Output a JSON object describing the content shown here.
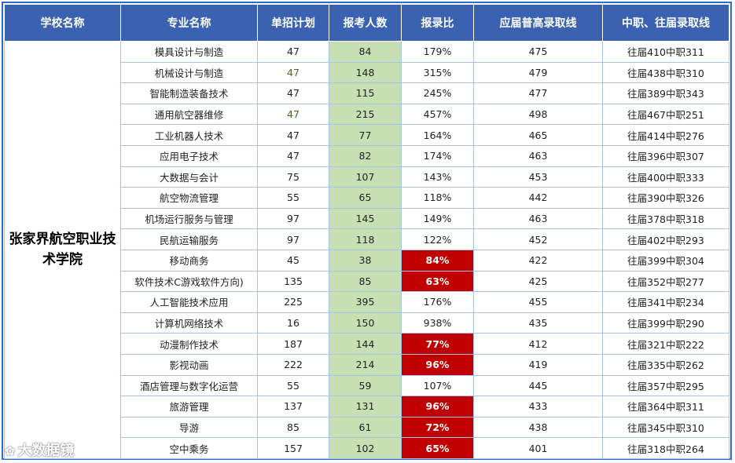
{
  "headers": [
    "学校名称",
    "专业名称",
    "单招计划",
    "报考人数",
    "报录比",
    "应届普高录取线",
    "中职、往届录取线"
  ],
  "school": "张家界航空职业技术学院",
  "rows": [
    {
      "major": "模具设计与制造",
      "plan": "47",
      "applicants": "84",
      "ratio": "179%",
      "line_hs": "475",
      "line_other": "往届410中职311",
      "low": false
    },
    {
      "major": "机械设计与制造",
      "plan": "47",
      "applicants": "148",
      "ratio": "315%",
      "line_hs": "479",
      "line_other": "往届438中职310",
      "low": false
    },
    {
      "major": "智能制造装备技术",
      "plan": "47",
      "applicants": "115",
      "ratio": "245%",
      "line_hs": "477",
      "line_other": "往届389中职343",
      "low": false
    },
    {
      "major": "通用航空器维修",
      "plan": "47",
      "applicants": "215",
      "ratio": "457%",
      "line_hs": "498",
      "line_other": "往届467中职251",
      "low": false
    },
    {
      "major": "工业机器人技术",
      "plan": "47",
      "applicants": "77",
      "ratio": "164%",
      "line_hs": "465",
      "line_other": "往届414中职276",
      "low": false
    },
    {
      "major": "应用电子技术",
      "plan": "47",
      "applicants": "82",
      "ratio": "174%",
      "line_hs": "463",
      "line_other": "往届396中职307",
      "low": false
    },
    {
      "major": "大数据与会计",
      "plan": "75",
      "applicants": "107",
      "ratio": "143%",
      "line_hs": "453",
      "line_other": "往届400中职333",
      "low": false
    },
    {
      "major": "航空物流管理",
      "plan": "55",
      "applicants": "65",
      "ratio": "118%",
      "line_hs": "442",
      "line_other": "往届390中职326",
      "low": false
    },
    {
      "major": "机场运行服务与管理",
      "plan": "97",
      "applicants": "145",
      "ratio": "149%",
      "line_hs": "463",
      "line_other": "往届378中职318",
      "low": false
    },
    {
      "major": "民航运输服务",
      "plan": "97",
      "applicants": "118",
      "ratio": "122%",
      "line_hs": "452",
      "line_other": "往届402中职293",
      "low": false
    },
    {
      "major": "移动商务",
      "plan": "45",
      "applicants": "38",
      "ratio": "84%",
      "line_hs": "422",
      "line_other": "往届399中职304",
      "low": true
    },
    {
      "major": "软件技术C游戏软件方向)",
      "plan": "135",
      "applicants": "85",
      "ratio": "63%",
      "line_hs": "425",
      "line_other": "往届352中职277",
      "low": true
    },
    {
      "major": "人工智能技术应用",
      "plan": "225",
      "applicants": "395",
      "ratio": "176%",
      "line_hs": "455",
      "line_other": "往届341中职234",
      "low": false
    },
    {
      "major": "计算机网络技术",
      "plan": "16",
      "applicants": "150",
      "ratio": "938%",
      "line_hs": "435",
      "line_other": "往届399中职290",
      "low": false
    },
    {
      "major": "动漫制作技术",
      "plan": "187",
      "applicants": "144",
      "ratio": "77%",
      "line_hs": "412",
      "line_other": "往届321中职222",
      "low": true
    },
    {
      "major": "影视动画",
      "plan": "222",
      "applicants": "214",
      "ratio": "96%",
      "line_hs": "419",
      "line_other": "往届335中职262",
      "low": true
    },
    {
      "major": "酒店管理与数字化运营",
      "plan": "55",
      "applicants": "59",
      "ratio": "107%",
      "line_hs": "445",
      "line_other": "往届357中职295",
      "low": false
    },
    {
      "major": "旅游管理",
      "plan": "137",
      "applicants": "131",
      "ratio": "96%",
      "line_hs": "433",
      "line_other": "往届364中职311",
      "low": true
    },
    {
      "major": "导游",
      "plan": "85",
      "applicants": "61",
      "ratio": "72%",
      "line_hs": "438",
      "line_other": "往届345中职310",
      "low": true
    },
    {
      "major": "空中乘务",
      "plan": "157",
      "applicants": "102",
      "ratio": "65%",
      "line_hs": "401",
      "line_other": "往届318中职264",
      "low": true
    }
  ],
  "colors": {
    "header_bg": "#3a62b0",
    "count_bg": "#c6e0b4",
    "low_ratio_bg": "#c00000"
  },
  "watermark": "大数据镜"
}
